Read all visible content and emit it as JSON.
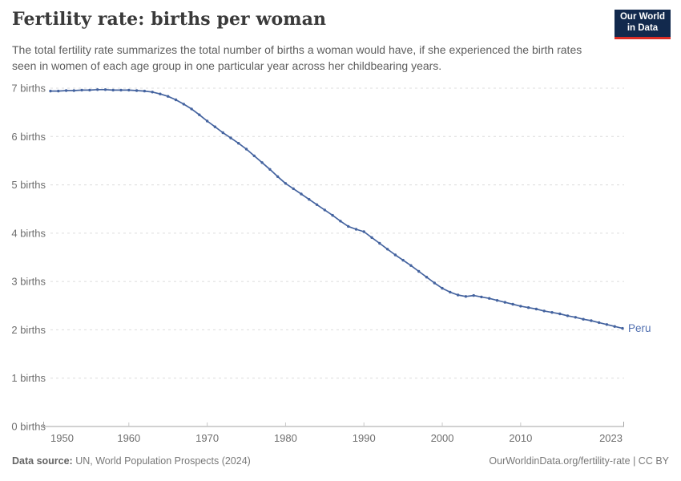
{
  "header": {
    "title": "Fertility rate: births per woman",
    "subtitle": "The total fertility rate summarizes the total number of births a woman would have, if she experienced the birth rates seen in women of each age group in one particular year across her childbearing years.",
    "logo_line1": "Our World",
    "logo_line2": "in Data"
  },
  "footer": {
    "source_label": "Data source:",
    "source_value": " UN, World Population Prospects (2024)",
    "link_text": "OurWorldinData.org/fertility-rate | CC BY"
  },
  "chart_data": {
    "type": "line",
    "title": "Fertility rate: births per woman",
    "xlabel": "",
    "ylabel": "births",
    "xlim": [
      1950,
      2023
    ],
    "ylim": [
      0,
      7
    ],
    "grid": "horizontal-dashed",
    "legend_position": "end-of-line-label",
    "entity_label": "Peru",
    "y_ticks": [
      {
        "value": 0,
        "label": "0 births"
      },
      {
        "value": 1,
        "label": "1 births"
      },
      {
        "value": 2,
        "label": "2 births"
      },
      {
        "value": 3,
        "label": "3 births"
      },
      {
        "value": 4,
        "label": "4 births"
      },
      {
        "value": 5,
        "label": "5 births"
      },
      {
        "value": 6,
        "label": "6 births"
      },
      {
        "value": 7,
        "label": "7 births"
      }
    ],
    "x_ticks": [
      {
        "value": 1950,
        "label": "1950",
        "align": "start"
      },
      {
        "value": 1960,
        "label": "1960",
        "align": "middle"
      },
      {
        "value": 1970,
        "label": "1970",
        "align": "middle"
      },
      {
        "value": 1980,
        "label": "1980",
        "align": "middle"
      },
      {
        "value": 1990,
        "label": "1990",
        "align": "middle"
      },
      {
        "value": 2000,
        "label": "2000",
        "align": "middle"
      },
      {
        "value": 2010,
        "label": "2010",
        "align": "middle"
      },
      {
        "value": 2023,
        "label": "2023",
        "align": "end"
      }
    ],
    "series": [
      {
        "name": "Peru",
        "color": "#44639f",
        "label_color": "#506fb0",
        "years": [
          1950,
          1951,
          1952,
          1953,
          1954,
          1955,
          1956,
          1957,
          1958,
          1959,
          1960,
          1961,
          1962,
          1963,
          1964,
          1965,
          1966,
          1967,
          1968,
          1969,
          1970,
          1971,
          1972,
          1973,
          1974,
          1975,
          1976,
          1977,
          1978,
          1979,
          1980,
          1981,
          1982,
          1983,
          1984,
          1985,
          1986,
          1987,
          1988,
          1989,
          1990,
          1991,
          1992,
          1993,
          1994,
          1995,
          1996,
          1997,
          1998,
          1999,
          2000,
          2001,
          2002,
          2003,
          2004,
          2005,
          2006,
          2007,
          2008,
          2009,
          2010,
          2011,
          2012,
          2013,
          2014,
          2015,
          2016,
          2017,
          2018,
          2019,
          2020,
          2021,
          2022,
          2023
        ],
        "values": [
          6.94,
          6.94,
          6.95,
          6.95,
          6.96,
          6.96,
          6.97,
          6.97,
          6.96,
          6.96,
          6.96,
          6.95,
          6.94,
          6.92,
          6.88,
          6.83,
          6.76,
          6.67,
          6.57,
          6.45,
          6.32,
          6.2,
          6.08,
          5.97,
          5.86,
          5.74,
          5.6,
          5.46,
          5.32,
          5.17,
          5.03,
          4.92,
          4.81,
          4.7,
          4.59,
          4.48,
          4.37,
          4.25,
          4.14,
          4.08,
          4.03,
          3.91,
          3.79,
          3.67,
          3.55,
          3.44,
          3.33,
          3.21,
          3.09,
          2.97,
          2.86,
          2.78,
          2.72,
          2.69,
          2.71,
          2.68,
          2.65,
          2.61,
          2.57,
          2.53,
          2.49,
          2.46,
          2.43,
          2.39,
          2.36,
          2.33,
          2.29,
          2.26,
          2.22,
          2.19,
          2.15,
          2.11,
          2.07,
          2.03
        ]
      }
    ],
    "colors": {
      "grid": "#dcdcdc",
      "axis": "#a3a3a3",
      "tick": "#c8c8c8",
      "tick_label": "#6e6e6e"
    }
  }
}
